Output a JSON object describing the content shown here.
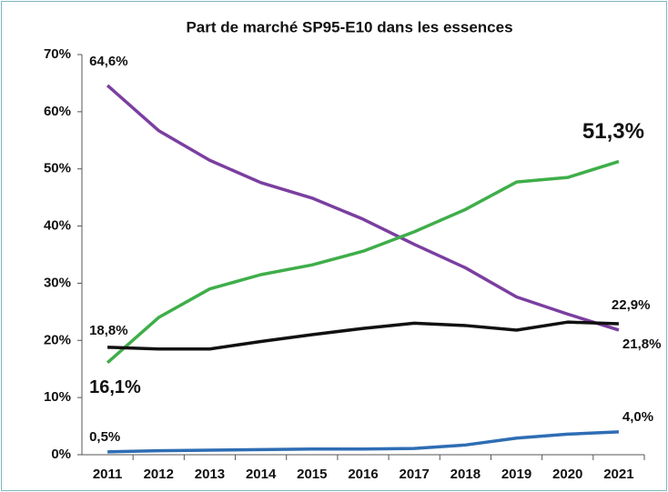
{
  "chart_data": {
    "type": "line",
    "title": "Part de marché SP95-E10 dans les essences",
    "categories": [
      "2011",
      "2012",
      "2013",
      "2014",
      "2015",
      "2016",
      "2017",
      "2018",
      "2019",
      "2020",
      "2021"
    ],
    "series": [
      {
        "color": "#7b3fa0",
        "values": [
          64.6,
          56.7,
          51.5,
          47.6,
          44.9,
          41.2,
          36.8,
          32.7,
          27.6,
          24.6,
          21.8
        ],
        "value_labels": [
          "64,6%",
          null,
          null,
          null,
          null,
          null,
          null,
          null,
          null,
          null,
          "21,8%"
        ]
      },
      {
        "color": "#3fae4a",
        "values": [
          16.1,
          24.0,
          29.0,
          31.5,
          33.2,
          35.6,
          39.0,
          42.9,
          47.7,
          48.5,
          51.3
        ],
        "value_labels": [
          "16,1%",
          null,
          null,
          null,
          null,
          null,
          null,
          null,
          null,
          null,
          "51,3%"
        ]
      },
      {
        "color": "#111111",
        "values": [
          18.8,
          18.5,
          18.5,
          19.8,
          21.0,
          22.1,
          23.0,
          22.6,
          21.8,
          23.2,
          22.9
        ],
        "value_labels": [
          "18,8%",
          null,
          null,
          null,
          null,
          null,
          null,
          null,
          null,
          null,
          "22,9%"
        ]
      },
      {
        "color": "#2e6db4",
        "values": [
          0.5,
          0.7,
          0.8,
          0.9,
          1.0,
          1.0,
          1.1,
          1.7,
          2.9,
          3.6,
          4.0
        ],
        "value_labels": [
          "0,5%",
          null,
          null,
          null,
          null,
          null,
          null,
          null,
          null,
          null,
          "4,0%"
        ]
      }
    ],
    "ylim": [
      0,
      70
    ],
    "yticks": [
      {
        "value": 0,
        "label": "0%"
      },
      {
        "value": 10,
        "label": "10%"
      },
      {
        "value": 20,
        "label": "20%"
      },
      {
        "value": 30,
        "label": "30%"
      },
      {
        "value": 40,
        "label": "40%"
      },
      {
        "value": 50,
        "label": "50%"
      },
      {
        "value": 60,
        "label": "60%"
      },
      {
        "value": 70,
        "label": "70%"
      }
    ],
    "grid": false
  }
}
